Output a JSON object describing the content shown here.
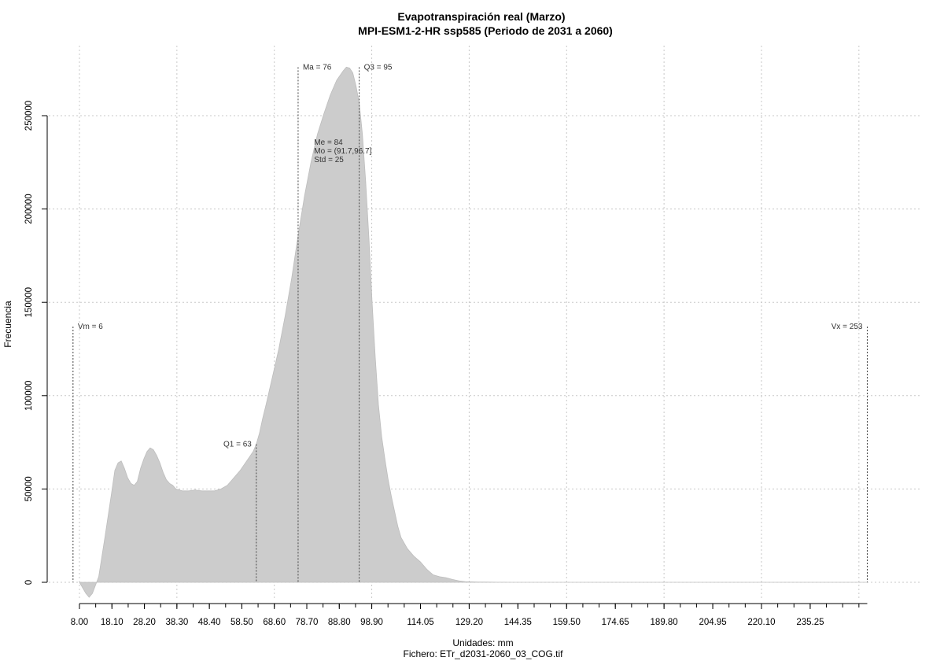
{
  "chart_data": {
    "type": "area",
    "title": "Evapotranspiración real (Marzo)",
    "subtitle": "MPI-ESM1-2-HR ssp585 (Periodo de 2031 a 2060)",
    "xlabel": "Unidades: mm",
    "ylabel": "Frecuencia",
    "footer": "Fichero: ETr_d2031-2060_03_COG.tif",
    "xlim": [
      8,
      253
    ],
    "ylim": [
      0,
      260000
    ],
    "grid": true,
    "x_ticks": [
      {
        "v": 8.0,
        "label": "8.00"
      },
      {
        "v": 18.1,
        "label": "18.10"
      },
      {
        "v": 28.2,
        "label": "28.20"
      },
      {
        "v": 38.3,
        "label": "38.30"
      },
      {
        "v": 48.4,
        "label": "48.40"
      },
      {
        "v": 58.5,
        "label": "58.50"
      },
      {
        "v": 68.6,
        "label": "68.60"
      },
      {
        "v": 78.7,
        "label": "78.70"
      },
      {
        "v": 88.8,
        "label": "88.80"
      },
      {
        "v": 98.9,
        "label": "98.90"
      },
      {
        "v": 114.05,
        "label": "114.05"
      },
      {
        "v": 129.2,
        "label": "129.20"
      },
      {
        "v": 144.35,
        "label": "144.35"
      },
      {
        "v": 159.5,
        "label": "159.50"
      },
      {
        "v": 174.65,
        "label": "174.65"
      },
      {
        "v": 189.8,
        "label": "189.80"
      },
      {
        "v": 204.95,
        "label": "204.95"
      },
      {
        "v": 220.1,
        "label": "220.10"
      },
      {
        "v": 235.25,
        "label": "235.25"
      }
    ],
    "y_ticks": [
      {
        "v": 0,
        "label": "0"
      },
      {
        "v": 50000,
        "label": "50000"
      },
      {
        "v": 100000,
        "label": "100000"
      },
      {
        "v": 150000,
        "label": "150000"
      },
      {
        "v": 200000,
        "label": "200000"
      },
      {
        "v": 250000,
        "label": "250000"
      }
    ],
    "series": [
      {
        "fill": "#cccccc",
        "x": [
          8,
          10,
          11,
          12,
          14,
          16,
          18,
          19,
          20,
          21,
          22,
          23,
          24,
          25,
          26,
          27,
          28,
          29,
          30,
          31,
          32,
          33,
          34,
          35,
          36,
          37,
          38,
          40,
          42,
          44,
          46,
          48,
          50,
          52,
          54,
          56,
          58,
          60,
          62,
          63,
          64,
          65,
          66,
          68,
          70,
          72,
          74,
          76,
          78,
          80,
          82,
          84,
          86,
          88,
          90,
          91,
          92,
          93,
          94,
          95,
          96,
          97,
          98,
          99,
          100,
          101,
          102,
          103,
          104,
          105,
          106,
          107,
          108,
          110,
          112,
          114,
          116,
          118,
          120,
          122,
          124,
          126,
          128,
          130,
          132,
          134,
          136,
          138,
          140,
          142,
          144,
          150,
          160,
          180,
          200,
          220,
          240,
          253
        ],
        "y": [
          0,
          -6000,
          -8000,
          -6000,
          3000,
          25000,
          48000,
          60000,
          64000,
          65000,
          61000,
          56000,
          53000,
          52000,
          54000,
          61000,
          66000,
          70000,
          72000,
          71000,
          68000,
          64000,
          59000,
          55000,
          53000,
          52000,
          50000,
          49000,
          49000,
          49500,
          49000,
          49000,
          49000,
          50000,
          52000,
          56000,
          60000,
          65000,
          70000,
          74000,
          80000,
          88000,
          95000,
          110000,
          125000,
          143000,
          163000,
          186000,
          207000,
          225000,
          240000,
          251000,
          261000,
          269000,
          274000,
          276000,
          275500,
          273000,
          266000,
          257000,
          240000,
          215000,
          185000,
          150000,
          120000,
          95000,
          78000,
          66000,
          55000,
          46000,
          38000,
          30000,
          24000,
          18000,
          14000,
          11000,
          7000,
          4000,
          3000,
          2500,
          1500,
          800,
          400,
          250,
          180,
          120,
          80,
          50,
          30,
          20,
          10,
          0,
          0,
          0,
          0,
          0,
          0,
          0
        ]
      }
    ],
    "annotations": [
      {
        "name": "Vm",
        "text": "Vm = 6",
        "x": 6,
        "y_top": 137000,
        "align": "right"
      },
      {
        "name": "Q1",
        "text": "Q1 = 63",
        "x": 63,
        "y_top": 74000,
        "align": "left"
      },
      {
        "name": "Ma",
        "text": "Ma = 76",
        "x": 76,
        "y_top": 276000,
        "align": "right"
      },
      {
        "name": "Q3",
        "text": "Q3 = 95",
        "x": 95,
        "y_top": 276000,
        "align": "right"
      },
      {
        "name": "Vx",
        "text": "Vx = 253",
        "x": 253,
        "y_top": 137000,
        "align": "left"
      }
    ],
    "stats_text": [
      "Me = 84",
      "Mo = (91.7,96.7]",
      "Std = 25"
    ],
    "stats_x": 80,
    "stats_y": 226000
  }
}
